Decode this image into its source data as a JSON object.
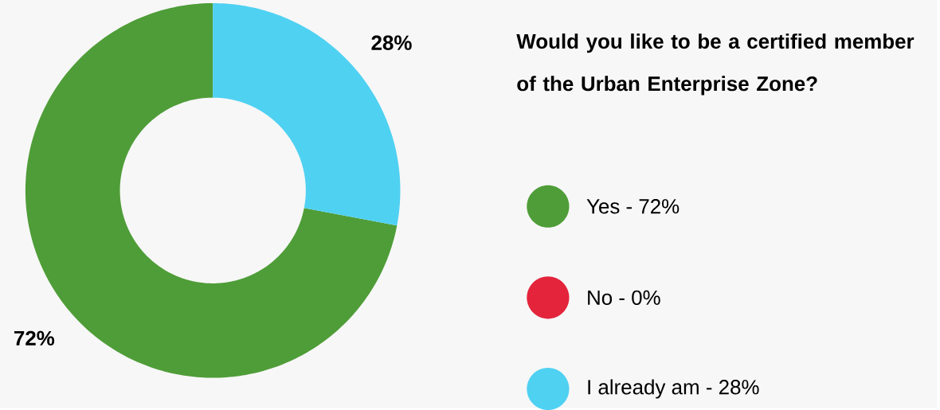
{
  "chart_data": {
    "type": "donut",
    "title": "Would you like to be a certified member of the Urban Enterprise Zone?",
    "categories": [
      "Yes - 72%",
      "No - 0%",
      "I already am - 28%"
    ],
    "values": [
      72,
      0,
      28
    ],
    "colors": [
      "#4f9d38",
      "#e3243b",
      "#4fd1f2"
    ],
    "value_labels": [
      "72%",
      null,
      "28%"
    ],
    "legend": "right"
  }
}
